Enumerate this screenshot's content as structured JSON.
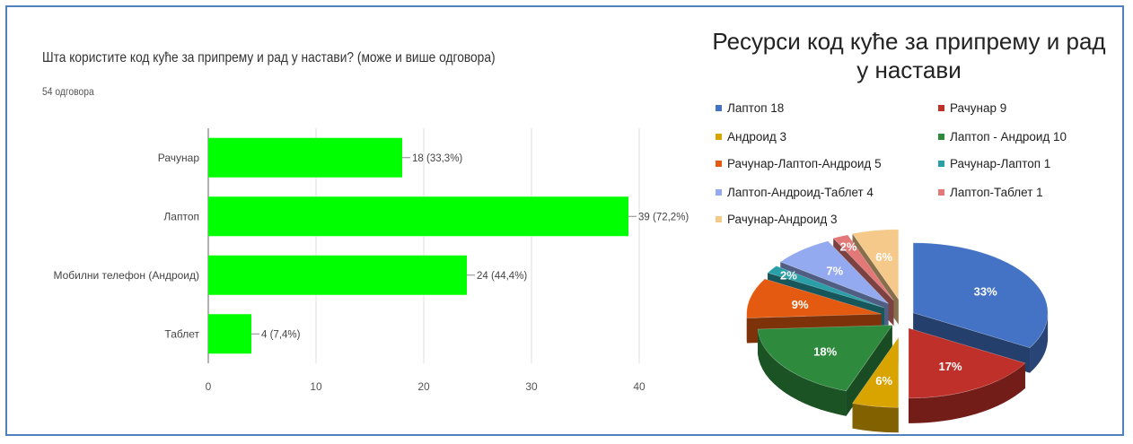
{
  "chart_data": [
    {
      "type": "bar",
      "orientation": "horizontal",
      "title": "Шта користите код куће за припрему и рад у настави? (може и више одговора)",
      "subtitle": "54 одговора",
      "categories": [
        "Рачунар",
        "Лаптоп",
        "Мобилни телефон (Андроид)",
        "Таблет"
      ],
      "values": [
        18,
        39,
        24,
        4
      ],
      "data_labels": [
        "18 (33,3%)",
        "39 (72,2%)",
        "24 (44,4%)",
        "4 (7,4%)"
      ],
      "x_ticks": [
        "0",
        "10",
        "20",
        "30",
        "40"
      ],
      "xlim": [
        0,
        40
      ],
      "grid": true,
      "bar_color": "#00ff00"
    },
    {
      "type": "pie",
      "style": "3d-exploded",
      "title": "Ресурси код куће за припрему и рад у настави",
      "legend_position": "top",
      "slices": [
        {
          "label": "Лаптоп 18",
          "value": 18,
          "pct_label": "33%",
          "color": "#4472c4"
        },
        {
          "label": "Рачунар 9",
          "value": 9,
          "pct_label": "17%",
          "color": "#c0302a"
        },
        {
          "label": "Андроид  3",
          "value": 3,
          "pct_label": "6%",
          "color": "#d9a400"
        },
        {
          "label": "Лаптоп - Андроид 10",
          "value": 10,
          "pct_label": "18%",
          "color": "#2e8b3e"
        },
        {
          "label": "Рачунар-Лаптоп-Андроид 5",
          "value": 5,
          "pct_label": "9%",
          "color": "#e35a10"
        },
        {
          "label": "Рачунар-Лаптоп 1",
          "value": 1,
          "pct_label": "2%",
          "color": "#2a9fa8"
        },
        {
          "label": "Лаптоп-Андроид-Таблет 4",
          "value": 4,
          "pct_label": "7%",
          "color": "#93aaf0"
        },
        {
          "label": "Лаптоп-Таблет 1",
          "value": 1,
          "pct_label": "2%",
          "color": "#e27878"
        },
        {
          "label": "Рачунар-Андроид 3",
          "value": 3,
          "pct_label": "6%",
          "color": "#f5c98a"
        }
      ]
    }
  ]
}
